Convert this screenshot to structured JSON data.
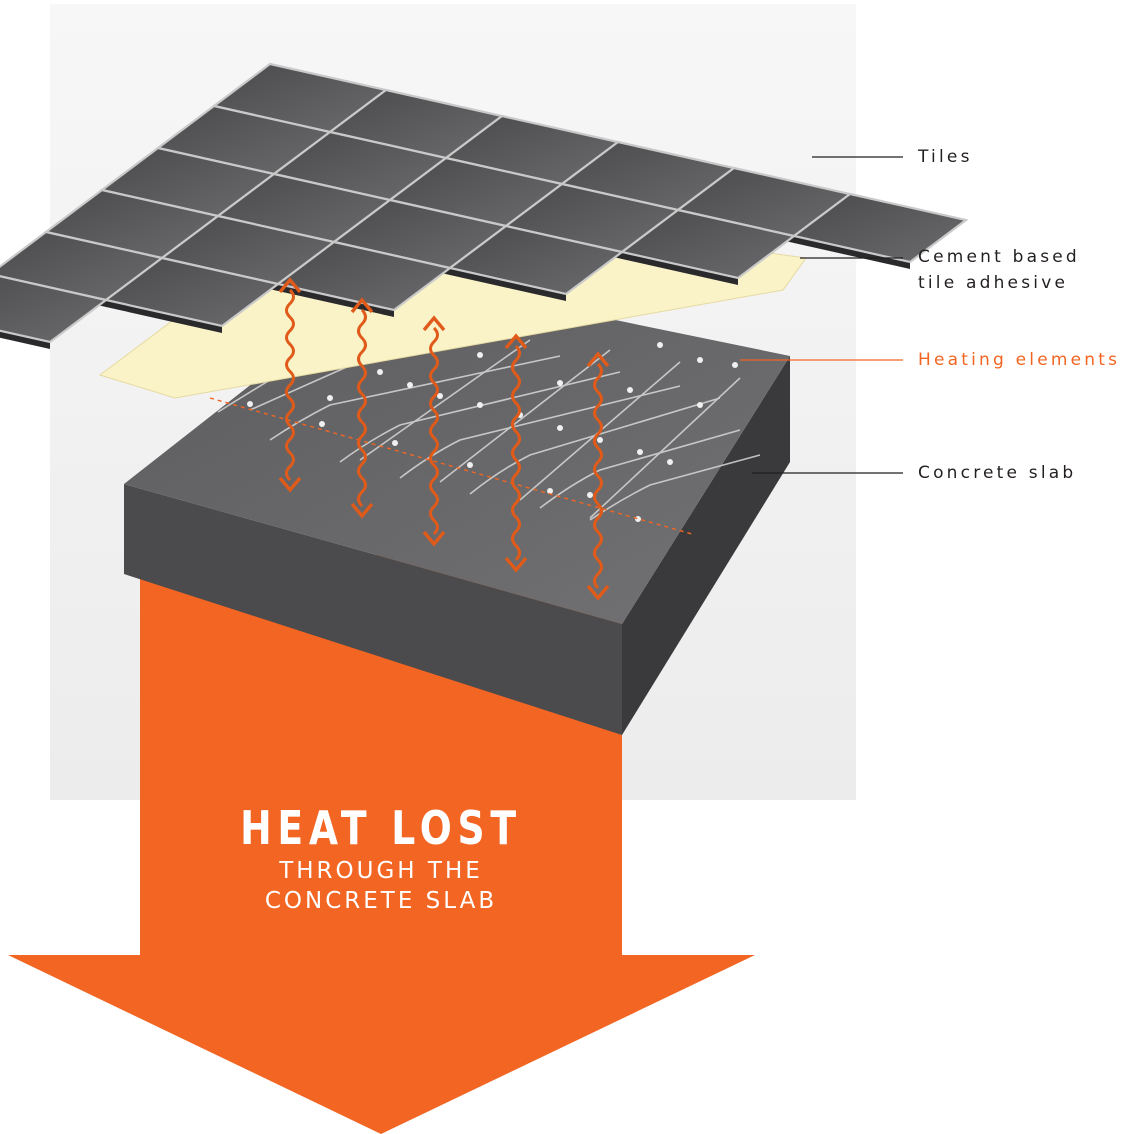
{
  "labels": {
    "tiles": "Tiles",
    "adhesive_line1": "Cement based",
    "adhesive_line2": "tile adhesive",
    "heating": "Heating elements",
    "slab": "Concrete slab"
  },
  "arrow": {
    "title": "HEAT LOST",
    "subtitle_line1": "THROUGH THE",
    "subtitle_line2": "CONCRETE SLAB"
  },
  "colors": {
    "accent": "#f26522",
    "tile": "#58585a",
    "grout": "#c9c9c9",
    "adhesive": "#fbf3c8",
    "slab_top": "#6a6a6c",
    "slab_front": "#49494b",
    "slab_side": "#333335",
    "label_text": "#231f20"
  }
}
